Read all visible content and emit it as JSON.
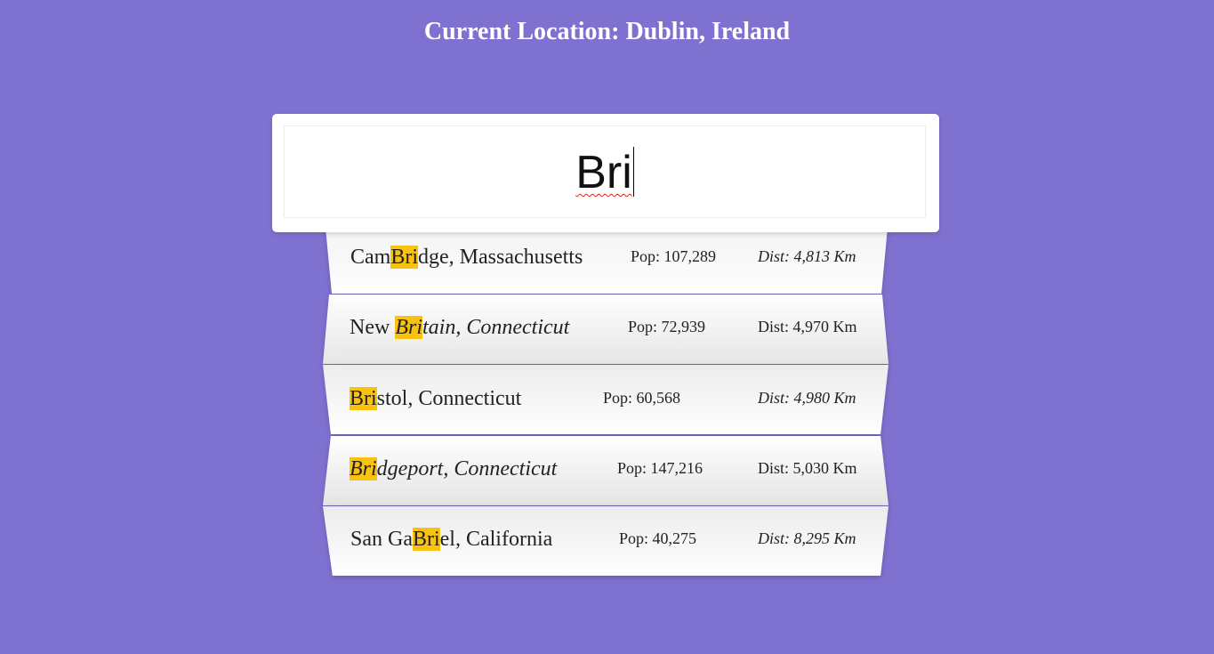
{
  "header": {
    "title": "Current Location: Dublin, Ireland"
  },
  "search": {
    "value": "Bri"
  },
  "colors": {
    "background": "#7f71d0",
    "highlight": "#f9c20e",
    "card": "#ffffff"
  },
  "results": [
    {
      "before": "Cam",
      "match": "Bri",
      "after": "dge, Massachusetts",
      "pop": "Pop: 107,289",
      "dist": "Dist: 4,813 Km"
    },
    {
      "before": "New ",
      "match": "Bri",
      "after": "tain, Connecticut",
      "pop": "Pop: 72,939",
      "dist": "Dist: 4,970 Km"
    },
    {
      "before": "",
      "match": "Bri",
      "after": "stol, Connecticut",
      "pop": "Pop: 60,568",
      "dist": "Dist: 4,980 Km"
    },
    {
      "before": "",
      "match": "Bri",
      "after": "dgeport, Connecticut",
      "pop": "Pop: 147,216",
      "dist": "Dist: 5,030 Km"
    },
    {
      "before": "San Ga",
      "match": "Bri",
      "after": "el, California",
      "pop": "Pop: 40,275",
      "dist": "Dist: 8,295 Km"
    }
  ]
}
